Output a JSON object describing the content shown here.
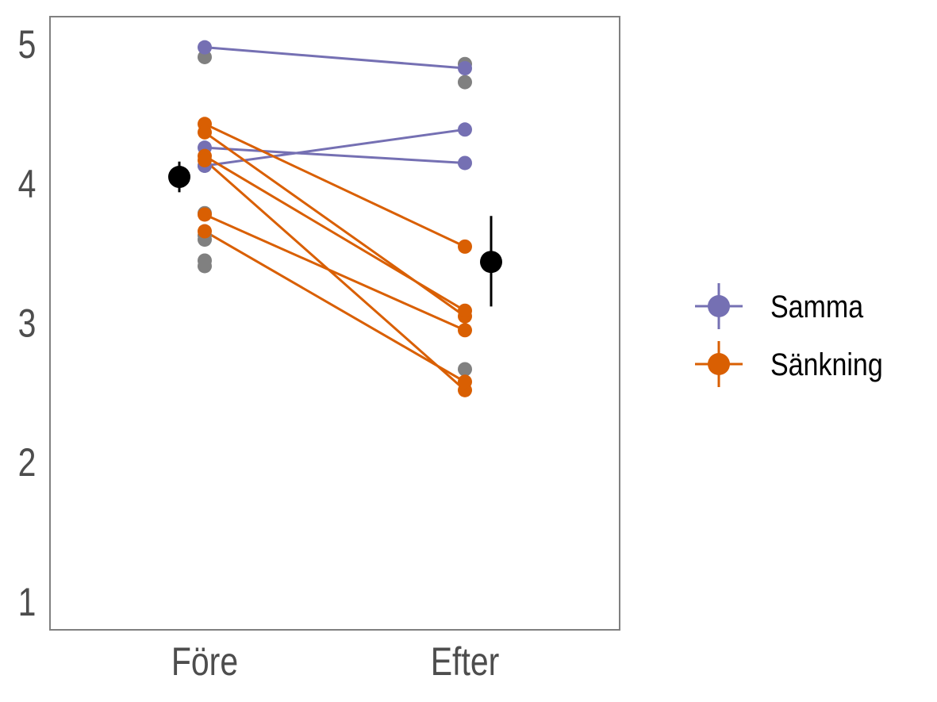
{
  "chart_data": {
    "type": "scatter",
    "title": "",
    "xlabel": "",
    "ylabel": "",
    "categories": [
      "Före",
      "Efter"
    ],
    "ylim": [
      0.8,
      5.2
    ],
    "yticks": [
      1,
      2,
      3,
      4,
      5
    ],
    "grid": false,
    "legend_position": "right",
    "colors": {
      "Samma": "#7570b3",
      "Sänkning": "#d95f02",
      "unmatched": "#808080",
      "mean": "#000000",
      "frame": "#808080"
    },
    "series": [
      {
        "name": "Samma",
        "pairs": [
          [
            4.98,
            4.83
          ],
          [
            4.13,
            4.39
          ],
          [
            4.26,
            4.15
          ]
        ]
      },
      {
        "name": "Sänkning",
        "pairs": [
          [
            4.43,
            3.55
          ],
          [
            4.37,
            3.05
          ],
          [
            4.2,
            3.09
          ],
          [
            4.17,
            2.52
          ],
          [
            3.78,
            2.95
          ],
          [
            3.66,
            2.58
          ]
        ]
      }
    ],
    "unmatched_points": {
      "Före": [
        4.91,
        4.13,
        3.79,
        3.63,
        3.6,
        3.45,
        3.41
      ],
      "Efter": [
        4.86,
        4.73,
        2.67
      ]
    },
    "means": [
      {
        "category": "Före",
        "mean": 4.05,
        "lower": 3.94,
        "upper": 4.16
      },
      {
        "category": "Efter",
        "mean": 3.44,
        "lower": 3.12,
        "upper": 3.77
      }
    ]
  }
}
